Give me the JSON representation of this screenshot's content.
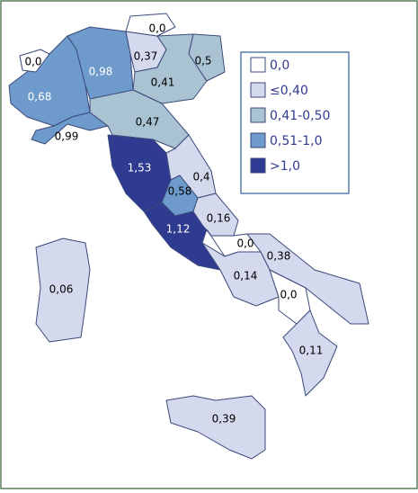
{
  "regions": [
    {
      "label": "0,0"
    },
    {
      "label": "0,68"
    },
    {
      "label": "0,98"
    },
    {
      "label": "0,37"
    },
    {
      "label": "0,0"
    },
    {
      "label": "0,41"
    },
    {
      "label": "0,5"
    },
    {
      "label": "0,99"
    },
    {
      "label": "0,47"
    },
    {
      "label": "1,53"
    },
    {
      "label": "0,4"
    },
    {
      "label": "0,58"
    },
    {
      "label": "1,12"
    },
    {
      "label": "0,16"
    },
    {
      "label": "0,0"
    },
    {
      "label": "0,38"
    },
    {
      "label": "0,14"
    },
    {
      "label": "0,0"
    },
    {
      "label": "0,11"
    },
    {
      "label": "0,39"
    },
    {
      "label": "0,06"
    }
  ],
  "legend": [
    {
      "label": "0,0",
      "color": "#ffffff"
    },
    {
      "label": "≤0,40",
      "color": "#d5d9ee"
    },
    {
      "label": "0,41-0,50",
      "color": "#aac3d3"
    },
    {
      "label": "0,51-1,0",
      "color": "#6e9bcb"
    },
    {
      "label": ">1,0",
      "color": "#2f3b90"
    }
  ]
}
